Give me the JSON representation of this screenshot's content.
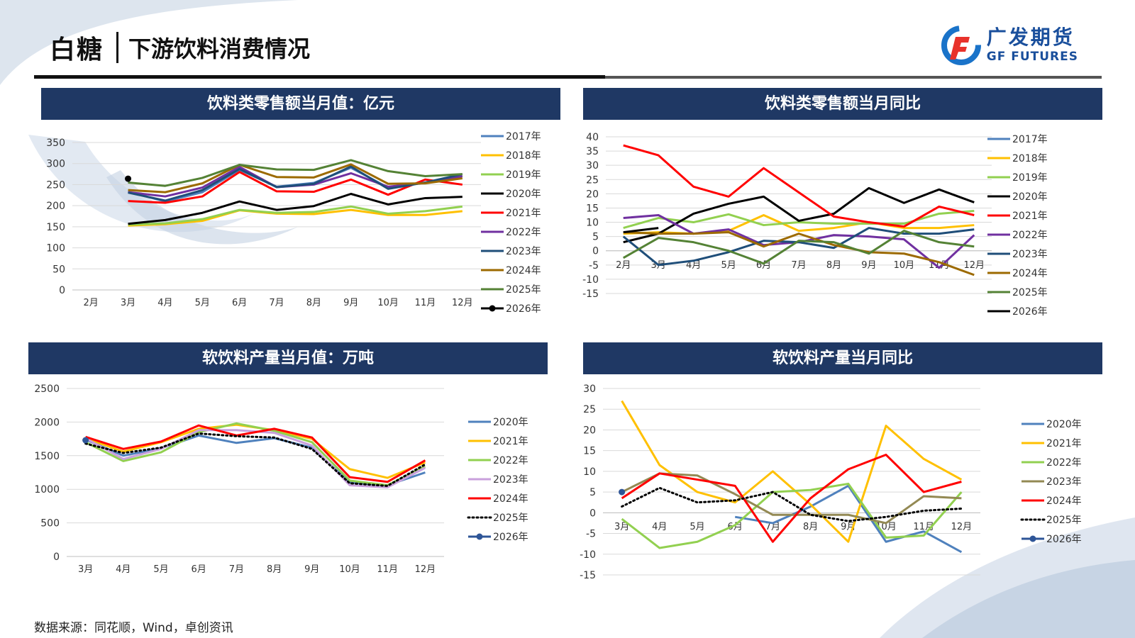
{
  "header": {
    "title": "白糖",
    "subtitle": "下游饮料消费情况"
  },
  "logo": {
    "cn": "广发期货",
    "en": "GF FUTURES"
  },
  "source": "数据来源：同花顺，Wind，卓创资讯",
  "chart_data": [
    {
      "type": "line",
      "title": "饮料类零售额当月值：亿元",
      "categories": [
        "2月",
        "3月",
        "4月",
        "5月",
        "6月",
        "7月",
        "8月",
        "9月",
        "10月",
        "11月",
        "12月"
      ],
      "ylim": [
        0,
        350
      ],
      "yticks": [
        0,
        50,
        100,
        150,
        200,
        250,
        300,
        350
      ],
      "legend": "right",
      "series": [
        {
          "name": "2017年",
          "color": "#4f81bd",
          "values": [
            null,
            233,
            210,
            232,
            285,
            245,
            254,
            290,
            243,
            255,
            270
          ]
        },
        {
          "name": "2018年",
          "color": "#ffc000",
          "values": [
            null,
            153,
            156,
            164,
            189,
            181,
            180,
            190,
            178,
            178,
            187
          ]
        },
        {
          "name": "2019年",
          "color": "#92d050",
          "values": [
            null,
            155,
            158,
            168,
            190,
            183,
            185,
            198,
            181,
            187,
            198
          ]
        },
        {
          "name": "2020年",
          "color": "#000000",
          "values": [
            null,
            157,
            166,
            183,
            210,
            190,
            199,
            228,
            203,
            218,
            221
          ]
        },
        {
          "name": "2021年",
          "color": "#ff0000",
          "values": [
            null,
            211,
            207,
            222,
            280,
            234,
            233,
            262,
            226,
            262,
            250
          ]
        },
        {
          "name": "2022年",
          "color": "#7030a0",
          "values": [
            null,
            232,
            222,
            243,
            292,
            244,
            250,
            277,
            245,
            254,
            270
          ]
        },
        {
          "name": "2023年",
          "color": "#1f4e79",
          "values": [
            null,
            231,
            212,
            237,
            287,
            244,
            252,
            293,
            240,
            255,
            275
          ]
        },
        {
          "name": "2024年",
          "color": "#9c6a00",
          "values": [
            null,
            237,
            232,
            253,
            297,
            268,
            267,
            298,
            252,
            253,
            265
          ]
        },
        {
          "name": "2025年",
          "color": "#548235",
          "values": [
            null,
            255,
            247,
            266,
            297,
            286,
            285,
            308,
            282,
            270,
            275
          ]
        },
        {
          "name": "2026年",
          "color": "#000000",
          "marker": true,
          "values": [
            null,
            264,
            null,
            null,
            null,
            null,
            null,
            null,
            null,
            null,
            null
          ]
        }
      ]
    },
    {
      "type": "line",
      "title": "饮料类零售额当月同比",
      "categories": [
        "2月",
        "3月",
        "4月",
        "5月",
        "6月",
        "7月",
        "8月",
        "9月",
        "10月",
        "11月",
        "12月"
      ],
      "ylim": [
        -15,
        40
      ],
      "yticks": [
        -15,
        -10,
        -5,
        0,
        5,
        10,
        15,
        20,
        25,
        30,
        35,
        40
      ],
      "legend": "right",
      "series": [
        {
          "name": "2017年",
          "color": "#4f81bd",
          "values": [
            null,
            null,
            null,
            null,
            null,
            null,
            null,
            null,
            null,
            null,
            null
          ]
        },
        {
          "name": "2018年",
          "color": "#ffc000",
          "values": [
            6,
            6.5,
            6,
            7,
            12.5,
            7,
            8,
            10,
            8,
            8,
            9
          ]
        },
        {
          "name": "2019年",
          "color": "#92d050",
          "values": [
            8,
            11.5,
            10,
            12.8,
            9,
            10,
            9.5,
            9.5,
            9.5,
            13,
            14
          ]
        },
        {
          "name": "2020年",
          "color": "#000000",
          "values": [
            3,
            6,
            13,
            16.5,
            19,
            10.5,
            13,
            22,
            16.8,
            21.5,
            17
          ]
        },
        {
          "name": "2021年",
          "color": "#ff0000",
          "values": [
            37,
            33.5,
            22.5,
            19,
            29,
            20.5,
            12,
            10,
            8.5,
            15.5,
            12.5
          ]
        },
        {
          "name": "2022年",
          "color": "#7030a0",
          "values": [
            11.5,
            12.5,
            6,
            7.5,
            2,
            3,
            5.5,
            5,
            4,
            -6,
            5.5
          ]
        },
        {
          "name": "2023年",
          "color": "#1f4e79",
          "values": [
            5,
            -5,
            -3.5,
            -0.5,
            3.5,
            3,
            1,
            8,
            6,
            6,
            7.5
          ]
        },
        {
          "name": "2024年",
          "color": "#9c6a00",
          "values": [
            6.5,
            6,
            6,
            6.5,
            1.5,
            6,
            2,
            -0.5,
            -1,
            -4,
            -8.5
          ]
        },
        {
          "name": "2025年",
          "color": "#548235",
          "values": [
            -2.5,
            4.5,
            3,
            0,
            -4.5,
            3.5,
            3,
            -1,
            7,
            3,
            1.5
          ]
        },
        {
          "name": "2026年",
          "color": "#000000",
          "values": [
            6.5,
            8,
            null,
            null,
            null,
            null,
            null,
            null,
            null,
            null,
            null
          ]
        }
      ]
    },
    {
      "type": "line",
      "title": "软饮料产量当月值：万吨",
      "categories": [
        "3月",
        "4月",
        "5月",
        "6月",
        "7月",
        "8月",
        "9月",
        "10月",
        "11月",
        "12月"
      ],
      "ylim": [
        0,
        2500
      ],
      "yticks": [
        0,
        500,
        1000,
        1500,
        2000,
        2500
      ],
      "legend": "right",
      "series": [
        {
          "name": "2020年",
          "color": "#4f81bd",
          "values": [
            1740,
            1500,
            1610,
            1800,
            1690,
            1760,
            1620,
            1100,
            1060,
            1250
          ]
        },
        {
          "name": "2021年",
          "color": "#ffc000",
          "values": [
            1760,
            1560,
            1700,
            1900,
            1960,
            1880,
            1750,
            1300,
            1170,
            1400
          ]
        },
        {
          "name": "2022年",
          "color": "#92d050",
          "values": [
            1700,
            1420,
            1550,
            1850,
            1980,
            1870,
            1700,
            1130,
            1060,
            1340
          ]
        },
        {
          "name": "2023年",
          "color": "#c9a0dc",
          "values": [
            1760,
            1450,
            1600,
            1880,
            1880,
            1840,
            1650,
            1060,
            1030,
            1320
          ]
        },
        {
          "name": "2024年",
          "color": "#ff0000",
          "values": [
            1780,
            1600,
            1710,
            1950,
            1800,
            1900,
            1770,
            1180,
            1110,
            1430
          ]
        },
        {
          "name": "2025年",
          "color": "#000000",
          "dashed": true,
          "values": [
            1680,
            1540,
            1620,
            1830,
            1790,
            1770,
            1600,
            1090,
            1050,
            1370
          ]
        },
        {
          "name": "2026年",
          "color": "#2e5597",
          "marker": true,
          "values": [
            1730,
            null,
            null,
            null,
            null,
            null,
            null,
            null,
            null,
            null
          ]
        }
      ]
    },
    {
      "type": "line",
      "title": "软饮料产量当月同比",
      "categories": [
        "3月",
        "4月",
        "5月",
        "6月",
        "7月",
        "8月",
        "9月",
        "10月",
        "11月",
        "12月"
      ],
      "ylim": [
        -15,
        30
      ],
      "yticks": [
        -15,
        -10,
        -5,
        0,
        5,
        10,
        15,
        20,
        25,
        30
      ],
      "legend": "right",
      "series": [
        {
          "name": "2020年",
          "color": "#4f81bd",
          "values": [
            null,
            null,
            null,
            -1,
            -2.5,
            1.5,
            6.5,
            -7,
            -4.5,
            -9.5
          ]
        },
        {
          "name": "2021年",
          "color": "#ffc000",
          "values": [
            27,
            11.5,
            5,
            2.5,
            10,
            2,
            -7,
            21,
            13,
            8
          ]
        },
        {
          "name": "2022年",
          "color": "#92d050",
          "values": [
            -1.5,
            -8.5,
            -7,
            -3,
            5,
            5.5,
            7,
            -6,
            -5.5,
            5
          ]
        },
        {
          "name": "2023年",
          "color": "#938953",
          "values": [
            5,
            9.5,
            9,
            4.5,
            -0.5,
            -0.5,
            -0.5,
            -2.5,
            4,
            3.5
          ]
        },
        {
          "name": "2024年",
          "color": "#ff0000",
          "values": [
            3.5,
            9.5,
            8,
            6.5,
            -7,
            3.5,
            10.5,
            14,
            5,
            7.5
          ]
        },
        {
          "name": "2025年",
          "color": "#000000",
          "dashed": true,
          "values": [
            1.5,
            6,
            2.5,
            3,
            5,
            -0.5,
            -2,
            -1,
            0.5,
            1
          ]
        },
        {
          "name": "2026年",
          "color": "#2e5597",
          "marker": true,
          "values": [
            5,
            null,
            null,
            null,
            null,
            null,
            null,
            null,
            null,
            null
          ]
        }
      ]
    }
  ]
}
